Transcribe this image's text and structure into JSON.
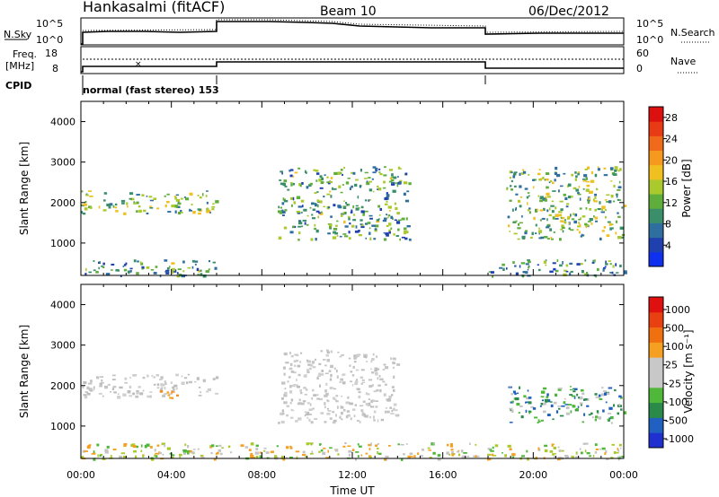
{
  "header": {
    "station": "Hankasalmi (fitACF)",
    "beam": "Beam 10",
    "date": "06/Dec/2012"
  },
  "noise_panel": {
    "left_label": "N.Sky",
    "right_label": "N.Search",
    "left_ticks": [
      "10^5",
      "10^0"
    ],
    "right_ticks": [
      "10^5",
      "10^0"
    ]
  },
  "freq_panel": {
    "left_label_1": "Freq.",
    "left_label_2": "[MHz]",
    "left_ticks": [
      "18",
      "8"
    ],
    "right_ticks": [
      "60",
      "0"
    ],
    "right_label": "Nave"
  },
  "cpid": {
    "label": "CPID",
    "program": "normal (fast stereo) 153"
  },
  "chart_data": [
    {
      "type": "heatmap",
      "ylabel": "Slant Range [km]",
      "yticks": [
        1000,
        2000,
        3000,
        4000
      ],
      "ylim": [
        200,
        4500
      ],
      "xlim": [
        0,
        24
      ],
      "colorbar": {
        "label": "Power [dB]",
        "ticks": [
          "4",
          "8",
          "12",
          "16",
          "20",
          "24",
          "28"
        ],
        "colors": [
          "#1030f0",
          "#2040b0",
          "#2f6fa0",
          "#3a8f6a",
          "#5fae3c",
          "#a9c92c",
          "#f0c020",
          "#f59a1e",
          "#ef6a1a",
          "#e83a14",
          "#dd1010"
        ]
      },
      "regions": [
        {
          "x": [
            0.0,
            6.0
          ],
          "y": [
            1750,
            2300
          ],
          "level": 0.5
        },
        {
          "x": [
            0.0,
            6.0
          ],
          "y": [
            200,
            600
          ],
          "level": 0.3
        },
        {
          "x": [
            8.7,
            14.5
          ],
          "y": [
            1100,
            2900
          ],
          "level": 0.3
        },
        {
          "x": [
            18.8,
            24.0
          ],
          "y": [
            1100,
            2900
          ],
          "level": 0.5
        },
        {
          "x": [
            18.0,
            24.0
          ],
          "y": [
            200,
            600
          ],
          "level": 0.2
        }
      ]
    },
    {
      "type": "heatmap",
      "ylabel": "Slant Range [km]",
      "yticks": [
        1000,
        2000,
        3000,
        4000
      ],
      "ylim": [
        200,
        4500
      ],
      "xlim": [
        0,
        24
      ],
      "colorbar": {
        "label": "Velocity [m s⁻¹]",
        "ticks": [
          "1000",
          "500",
          "100",
          "25",
          "-25",
          "-100",
          "-500",
          "-1000"
        ],
        "colors": [
          "#2030d0",
          "#2060c0",
          "#2a8a4a",
          "#4fb83a",
          "#c8c8c8",
          "#c8c8c8",
          "#f5a020",
          "#f07010",
          "#e84010",
          "#e01010"
        ]
      },
      "regions": [
        {
          "x": [
            0.0,
            6.0
          ],
          "y": [
            1750,
            2300
          ],
          "velocity": "grey"
        },
        {
          "x": [
            3.0,
            4.4
          ],
          "y": [
            1700,
            1900
          ],
          "velocity": "orange"
        },
        {
          "x": [
            8.7,
            14.0
          ],
          "y": [
            1100,
            2900
          ],
          "velocity": "grey"
        },
        {
          "x": [
            18.8,
            24.0
          ],
          "y": [
            1100,
            2000
          ],
          "velocity": "green"
        },
        {
          "x": [
            0.0,
            24.0
          ],
          "y": [
            200,
            600
          ],
          "velocity": "mixed"
        }
      ]
    }
  ],
  "time_axis": {
    "xlabel": "Time UT",
    "ticks": [
      "00:00",
      "04:00",
      "08:00",
      "12:00",
      "16:00",
      "20:00",
      "00:00"
    ]
  }
}
